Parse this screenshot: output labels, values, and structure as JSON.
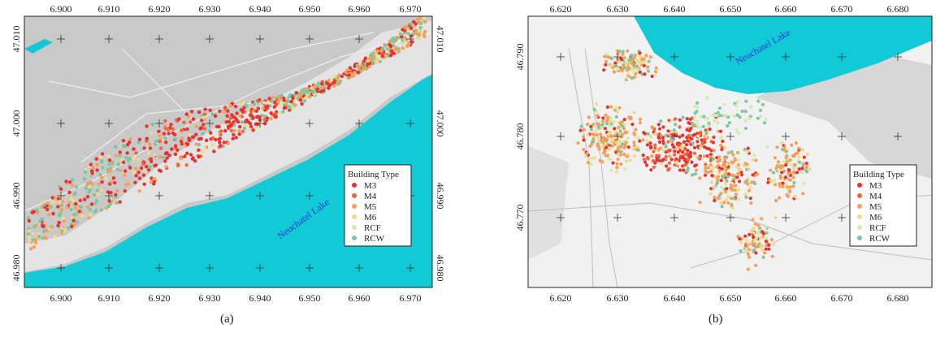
{
  "panels": [
    {
      "label": "(a)",
      "lake_label": "Neuchatel Lake",
      "x_ticks": [
        "6.900",
        "6.910",
        "6.920",
        "6.930",
        "6.940",
        "6.950",
        "6.960",
        "6.970"
      ],
      "y_ticks": [
        "46.980",
        "46.990",
        "47.000",
        "47.010"
      ],
      "legend": {
        "title": "Building Type",
        "items": [
          {
            "label": "M3",
            "color": "#e63232"
          },
          {
            "label": "M4",
            "color": "#f2643c"
          },
          {
            "label": "M5",
            "color": "#f5a05a"
          },
          {
            "label": "M6",
            "color": "#f2da8a"
          },
          {
            "label": "RCF",
            "color": "#d3ebb0"
          },
          {
            "label": "RCW",
            "color": "#7cc6a0"
          }
        ]
      }
    },
    {
      "label": "(b)",
      "lake_label": "Neuchatel Lake",
      "x_ticks": [
        "6.620",
        "6.630",
        "6.640",
        "6.650",
        "6.660",
        "6.670",
        "6.680"
      ],
      "y_ticks": [
        "46.770",
        "46.780",
        "46.790"
      ],
      "legend": {
        "title": "Building Type",
        "items": [
          {
            "label": "M3",
            "color": "#e63232"
          },
          {
            "label": "M4",
            "color": "#f2643c"
          },
          {
            "label": "M5",
            "color": "#f5a05a"
          },
          {
            "label": "M6",
            "color": "#f2da8a"
          },
          {
            "label": "RCF",
            "color": "#d3ebb0"
          },
          {
            "label": "RCW",
            "color": "#7cc6a0"
          }
        ]
      }
    }
  ]
}
